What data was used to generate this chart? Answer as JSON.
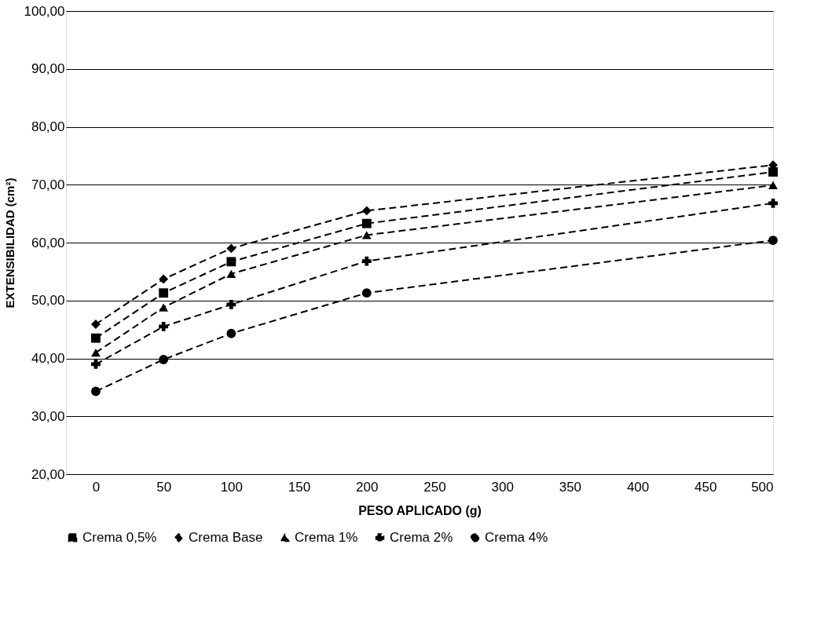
{
  "chart_data": {
    "type": "line",
    "xlabel": "PESO APLICADO (g)",
    "ylabel": "EXTENSIBILIDAD (cm²)",
    "x": [
      0,
      50,
      100,
      200,
      500
    ],
    "series": [
      {
        "name": "Crema 0,5%",
        "color": "#000000",
        "marker": "square",
        "values": [
          43.5,
          51.3,
          56.7,
          63.3,
          72.2
        ]
      },
      {
        "name": "Crema Base",
        "color": "#000000",
        "marker": "diamond",
        "values": [
          45.9,
          53.7,
          59.0,
          65.5,
          73.4
        ]
      },
      {
        "name": "Crema 1%",
        "color": "#000000",
        "marker": "triangle",
        "values": [
          41.0,
          48.8,
          54.6,
          61.3,
          69.9
        ]
      },
      {
        "name": "Crema 2%",
        "color": "#000000",
        "marker": "cross",
        "values": [
          39.0,
          45.5,
          49.3,
          56.8,
          66.8
        ]
      },
      {
        "name": "Crema 4%",
        "color": "#000000",
        "marker": "circle",
        "values": [
          34.3,
          39.8,
          44.3,
          51.3,
          60.4
        ]
      }
    ],
    "xlim": [
      -22,
      500
    ],
    "xticks": [
      0,
      50,
      100,
      150,
      200,
      250,
      300,
      350,
      400,
      450,
      500
    ],
    "ylim": [
      20,
      100
    ],
    "yticks": [
      {
        "value": 20,
        "label": "20,00"
      },
      {
        "value": 30,
        "label": "30,00"
      },
      {
        "value": 40,
        "label": "40,00"
      },
      {
        "value": 50,
        "label": "50,00"
      },
      {
        "value": 60,
        "label": "60,00"
      },
      {
        "value": 70,
        "label": "70,00"
      },
      {
        "value": 80,
        "label": "80,00"
      },
      {
        "value": 90,
        "label": "90,00"
      },
      {
        "value": 100,
        "label": "100,00"
      }
    ],
    "grid": "y",
    "legend": "bottom",
    "line_style": "dashed"
  }
}
